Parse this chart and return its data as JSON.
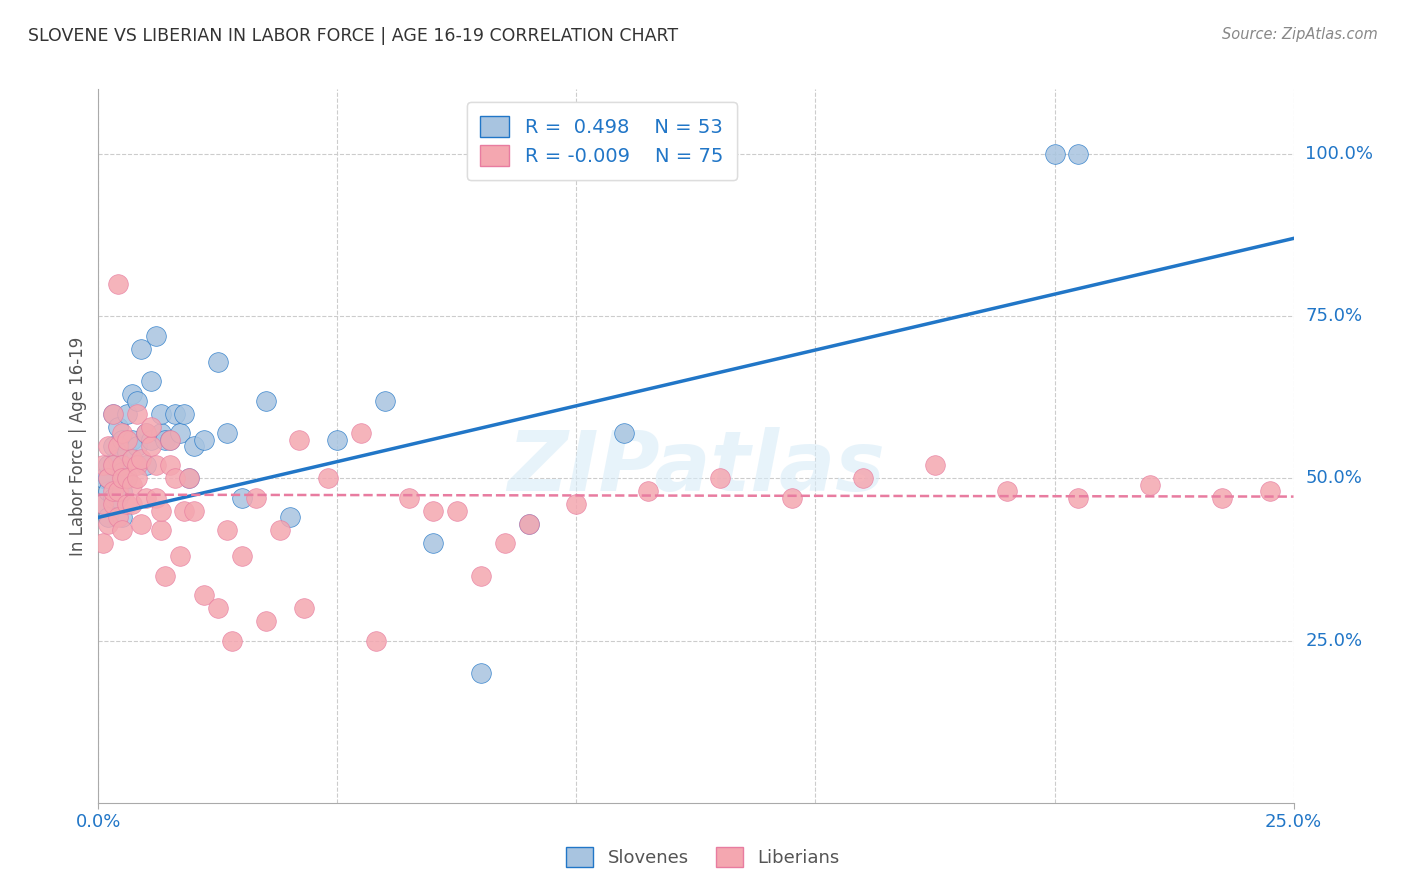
{
  "title": "SLOVENE VS LIBERIAN IN LABOR FORCE | AGE 16-19 CORRELATION CHART",
  "source": "Source: ZipAtlas.com",
  "ylabel": "In Labor Force | Age 16-19",
  "xlim": [
    0.0,
    0.25
  ],
  "ylim": [
    0.0,
    1.1
  ],
  "yticks_right": [
    0.25,
    0.5,
    0.75,
    1.0
  ],
  "ytick_right_labels": [
    "25.0%",
    "50.0%",
    "75.0%",
    "100.0%"
  ],
  "slovene_color": "#a8c4e0",
  "liberian_color": "#f4a7b0",
  "slovene_line_color": "#2176c7",
  "liberian_line_color": "#e87ca0",
  "watermark": "ZIPatlas",
  "slovene_scatter_x": [
    0.001,
    0.001,
    0.002,
    0.002,
    0.002,
    0.002,
    0.003,
    0.003,
    0.003,
    0.003,
    0.004,
    0.004,
    0.004,
    0.005,
    0.005,
    0.005,
    0.005,
    0.006,
    0.006,
    0.006,
    0.007,
    0.007,
    0.008,
    0.008,
    0.009,
    0.01,
    0.01,
    0.011,
    0.011,
    0.012,
    0.013,
    0.013,
    0.014,
    0.015,
    0.016,
    0.017,
    0.018,
    0.019,
    0.02,
    0.022,
    0.025,
    0.027,
    0.03,
    0.035,
    0.04,
    0.05,
    0.06,
    0.07,
    0.08,
    0.09,
    0.11,
    0.2,
    0.205
  ],
  "slovene_scatter_y": [
    0.46,
    0.5,
    0.48,
    0.52,
    0.44,
    0.5,
    0.52,
    0.47,
    0.55,
    0.6,
    0.58,
    0.53,
    0.47,
    0.51,
    0.56,
    0.48,
    0.44,
    0.54,
    0.6,
    0.5,
    0.63,
    0.56,
    0.55,
    0.62,
    0.7,
    0.57,
    0.52,
    0.65,
    0.56,
    0.72,
    0.57,
    0.6,
    0.56,
    0.56,
    0.6,
    0.57,
    0.6,
    0.5,
    0.55,
    0.56,
    0.68,
    0.57,
    0.47,
    0.62,
    0.44,
    0.56,
    0.62,
    0.4,
    0.2,
    0.43,
    0.57,
    1.0,
    1.0
  ],
  "liberian_scatter_x": [
    0.001,
    0.001,
    0.001,
    0.002,
    0.002,
    0.002,
    0.003,
    0.003,
    0.003,
    0.003,
    0.004,
    0.004,
    0.004,
    0.004,
    0.005,
    0.005,
    0.005,
    0.005,
    0.006,
    0.006,
    0.006,
    0.007,
    0.007,
    0.007,
    0.008,
    0.008,
    0.008,
    0.009,
    0.009,
    0.01,
    0.01,
    0.011,
    0.011,
    0.012,
    0.012,
    0.013,
    0.013,
    0.014,
    0.015,
    0.015,
    0.016,
    0.017,
    0.018,
    0.019,
    0.02,
    0.022,
    0.025,
    0.027,
    0.03,
    0.033,
    0.038,
    0.042,
    0.048,
    0.055,
    0.065,
    0.075,
    0.09,
    0.1,
    0.115,
    0.13,
    0.145,
    0.16,
    0.175,
    0.19,
    0.205,
    0.22,
    0.235,
    0.245,
    0.085,
    0.07,
    0.058,
    0.035,
    0.028,
    0.043,
    0.08
  ],
  "liberian_scatter_y": [
    0.46,
    0.4,
    0.52,
    0.5,
    0.43,
    0.55,
    0.52,
    0.6,
    0.46,
    0.48,
    0.55,
    0.48,
    0.44,
    0.8,
    0.57,
    0.52,
    0.42,
    0.5,
    0.56,
    0.46,
    0.5,
    0.49,
    0.53,
    0.46,
    0.6,
    0.52,
    0.5,
    0.43,
    0.53,
    0.57,
    0.47,
    0.55,
    0.58,
    0.52,
    0.47,
    0.42,
    0.45,
    0.35,
    0.56,
    0.52,
    0.5,
    0.38,
    0.45,
    0.5,
    0.45,
    0.32,
    0.3,
    0.42,
    0.38,
    0.47,
    0.42,
    0.56,
    0.5,
    0.57,
    0.47,
    0.45,
    0.43,
    0.46,
    0.48,
    0.5,
    0.47,
    0.5,
    0.52,
    0.48,
    0.47,
    0.49,
    0.47,
    0.48,
    0.4,
    0.45,
    0.25,
    0.28,
    0.25,
    0.3,
    0.35
  ],
  "slovene_trend_x": [
    0.0,
    0.25
  ],
  "slovene_trend_y": [
    0.44,
    0.87
  ],
  "liberian_trend_x": [
    0.0,
    0.25
  ],
  "liberian_trend_y": [
    0.475,
    0.472
  ],
  "background_color": "#ffffff",
  "grid_color": "#cccccc"
}
